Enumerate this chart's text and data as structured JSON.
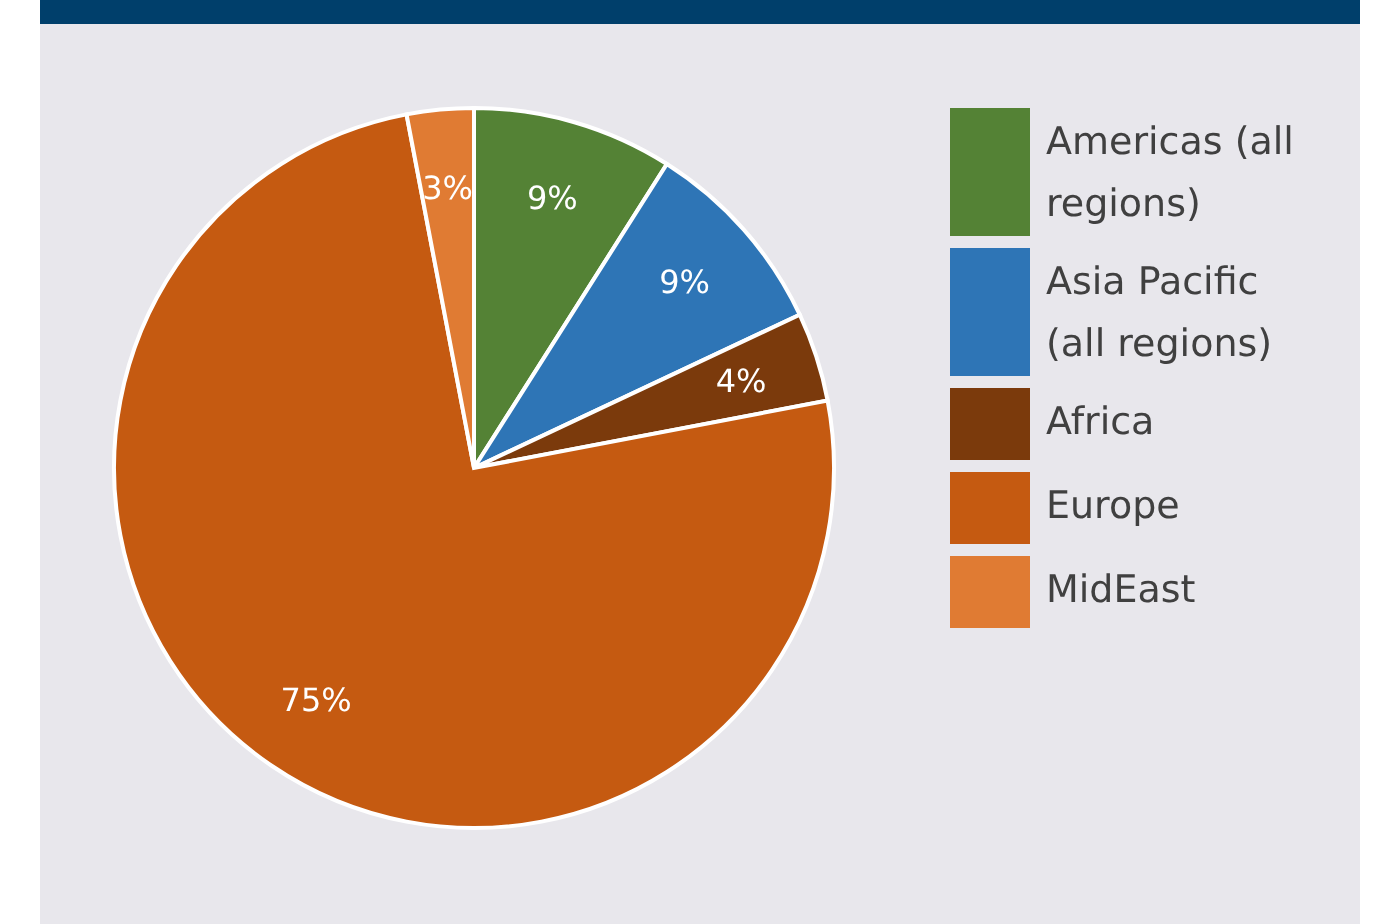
{
  "chart_data": {
    "type": "pie",
    "categories": [
      "Americas (all regions)",
      "Asia Pacific (all regions)",
      "Africa",
      "Europe",
      "MidEast"
    ],
    "values": [
      9,
      9,
      4,
      75,
      3
    ],
    "colors": [
      "#548235",
      "#2e75b6",
      "#7b3a0c",
      "#c55a11",
      "#e07b33"
    ],
    "value_labels": [
      "9%",
      "9%",
      "4%",
      "75%",
      "3%"
    ],
    "legend": "right"
  }
}
